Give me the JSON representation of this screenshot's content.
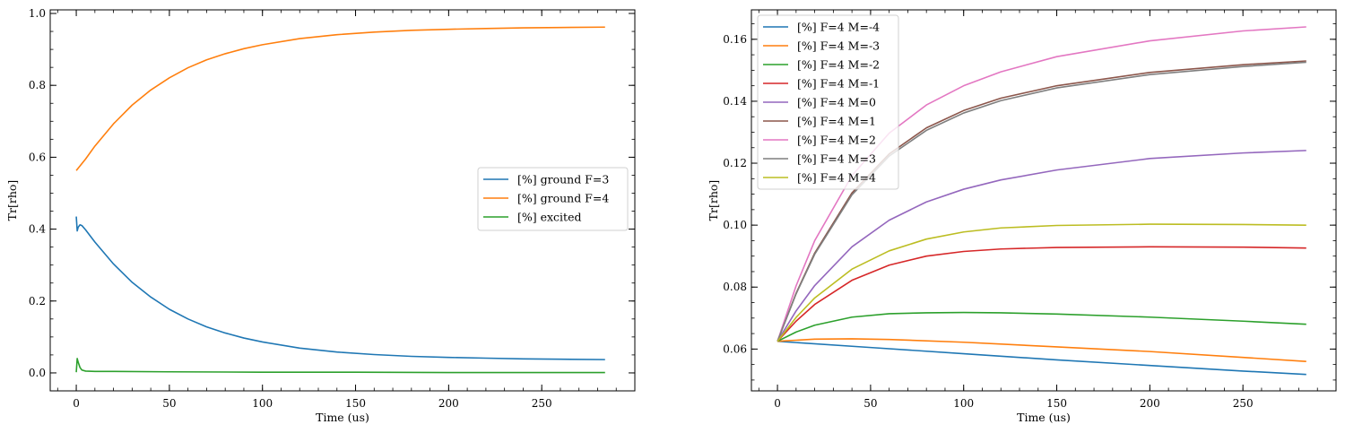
{
  "figure": {
    "background": "#ffffff"
  },
  "chart_data": [
    {
      "type": "line",
      "xlabel": "Time (us)",
      "ylabel": "Tr[rho]",
      "xlim": [
        -14,
        300
      ],
      "ylim": [
        -0.05,
        1.01
      ],
      "xticks": [
        0,
        50,
        100,
        150,
        200,
        250
      ],
      "yticks": [
        0.0,
        0.2,
        0.4,
        0.6,
        0.8,
        1.0
      ],
      "ytick_labels": [
        "0.0",
        "0.2",
        "0.4",
        "0.6",
        "0.8",
        "1.0"
      ],
      "grid": false,
      "legend_position": "center-right",
      "series": [
        {
          "name": "[%] ground  F=3",
          "color": "#1f77b4",
          "x": [
            0,
            0.5,
            1,
            2,
            3,
            5,
            10,
            20,
            30,
            40,
            50,
            60,
            70,
            80,
            90,
            100,
            120,
            140,
            160,
            180,
            200,
            220,
            240,
            260,
            284
          ],
          "y": [
            0.435,
            0.395,
            0.405,
            0.412,
            0.41,
            0.398,
            0.364,
            0.303,
            0.252,
            0.211,
            0.177,
            0.15,
            0.128,
            0.111,
            0.097,
            0.086,
            0.069,
            0.058,
            0.051,
            0.046,
            0.043,
            0.041,
            0.039,
            0.038,
            0.037
          ]
        },
        {
          "name": "[%] ground  F=4",
          "color": "#ff7f0e",
          "x": [
            0,
            5,
            10,
            20,
            30,
            40,
            50,
            60,
            70,
            80,
            90,
            100,
            120,
            140,
            160,
            180,
            200,
            220,
            240,
            260,
            284
          ],
          "y": [
            0.563,
            0.595,
            0.631,
            0.693,
            0.745,
            0.787,
            0.821,
            0.849,
            0.871,
            0.888,
            0.902,
            0.913,
            0.93,
            0.941,
            0.948,
            0.953,
            0.956,
            0.958,
            0.96,
            0.961,
            0.962
          ]
        },
        {
          "name": "[%] excited",
          "color": "#2ca02c",
          "x": [
            0,
            0.5,
            1,
            2,
            3,
            5,
            10,
            20,
            50,
            100,
            150,
            200,
            250,
            284
          ],
          "y": [
            0.002,
            0.04,
            0.03,
            0.015,
            0.008,
            0.005,
            0.004,
            0.004,
            0.003,
            0.002,
            0.002,
            0.001,
            0.001,
            0.001
          ]
        }
      ]
    },
    {
      "type": "line",
      "xlabel": "Time (us)",
      "ylabel": "Tr[rho]",
      "xlim": [
        -14,
        300
      ],
      "ylim": [
        0.0465,
        0.1695
      ],
      "xticks": [
        0,
        50,
        100,
        150,
        200,
        250
      ],
      "yticks": [
        0.06,
        0.08,
        0.1,
        0.12,
        0.14,
        0.16
      ],
      "ytick_labels": [
        "0.06",
        "0.08",
        "0.10",
        "0.12",
        "0.14",
        "0.16"
      ],
      "grid": false,
      "legend_position": "top-left",
      "series": [
        {
          "name": "[%] F=4  M=-4",
          "color": "#1f77b4",
          "x": [
            0,
            50,
            100,
            150,
            200,
            250,
            284
          ],
          "y": [
            0.0625,
            0.0605,
            0.0585,
            0.0565,
            0.0547,
            0.0529,
            0.0518
          ]
        },
        {
          "name": "[%] F=4  M=-3",
          "color": "#ff7f0e",
          "x": [
            0,
            20,
            40,
            60,
            100,
            150,
            200,
            250,
            284
          ],
          "y": [
            0.0625,
            0.0632,
            0.0633,
            0.0631,
            0.0622,
            0.0607,
            0.0592,
            0.0573,
            0.056
          ]
        },
        {
          "name": "[%] F=4  M=-2",
          "color": "#2ca02c",
          "x": [
            0,
            10,
            20,
            40,
            60,
            80,
            100,
            120,
            150,
            200,
            250,
            284
          ],
          "y": [
            0.0625,
            0.0655,
            0.0677,
            0.0703,
            0.0714,
            0.0717,
            0.0718,
            0.0717,
            0.0713,
            0.0703,
            0.069,
            0.068
          ]
        },
        {
          "name": "[%] F=4  M=-1",
          "color": "#d62728",
          "x": [
            0,
            10,
            20,
            40,
            60,
            80,
            100,
            120,
            150,
            200,
            250,
            284
          ],
          "y": [
            0.0625,
            0.069,
            0.0744,
            0.0822,
            0.0871,
            0.09,
            0.0915,
            0.0923,
            0.0928,
            0.093,
            0.0929,
            0.0926
          ]
        },
        {
          "name": "[%] F=4  M=0",
          "color": "#9467bd",
          "x": [
            0,
            10,
            20,
            40,
            60,
            80,
            100,
            120,
            150,
            200,
            250,
            284
          ],
          "y": [
            0.0625,
            0.0723,
            0.0805,
            0.093,
            0.1016,
            0.1075,
            0.1116,
            0.1146,
            0.1178,
            0.1215,
            0.1233,
            0.1241
          ]
        },
        {
          "name": "[%] F=4  M=1",
          "color": "#8c564b",
          "x": [
            0,
            10,
            20,
            40,
            60,
            80,
            100,
            120,
            150,
            200,
            250,
            284
          ],
          "y": [
            0.0625,
            0.078,
            0.091,
            0.1104,
            0.123,
            0.1314,
            0.137,
            0.141,
            0.145,
            0.1493,
            0.1518,
            0.153
          ]
        },
        {
          "name": "[%] F=4  M=2",
          "color": "#e377c2",
          "x": [
            0,
            10,
            20,
            40,
            60,
            80,
            100,
            120,
            150,
            200,
            250,
            284
          ],
          "y": [
            0.0625,
            0.0804,
            0.095,
            0.116,
            0.1297,
            0.1388,
            0.145,
            0.1495,
            0.1544,
            0.1595,
            0.1627,
            0.164
          ]
        },
        {
          "name": "[%] F=4  M=3",
          "color": "#7f7f7f",
          "x": [
            0,
            10,
            20,
            40,
            60,
            80,
            100,
            120,
            150,
            200,
            250,
            284
          ],
          "y": [
            0.0625,
            0.0778,
            0.0906,
            0.1098,
            0.1223,
            0.1306,
            0.1362,
            0.1402,
            0.1443,
            0.1486,
            0.1512,
            0.1526
          ]
        },
        {
          "name": "[%] F=4  M=4",
          "color": "#bcbd22",
          "x": [
            0,
            10,
            20,
            40,
            60,
            80,
            100,
            120,
            150,
            200,
            250,
            284
          ],
          "y": [
            0.0625,
            0.0702,
            0.0765,
            0.0858,
            0.0917,
            0.0955,
            0.0978,
            0.0991,
            0.0999,
            0.1003,
            0.1002,
            0.1
          ]
        }
      ]
    }
  ]
}
